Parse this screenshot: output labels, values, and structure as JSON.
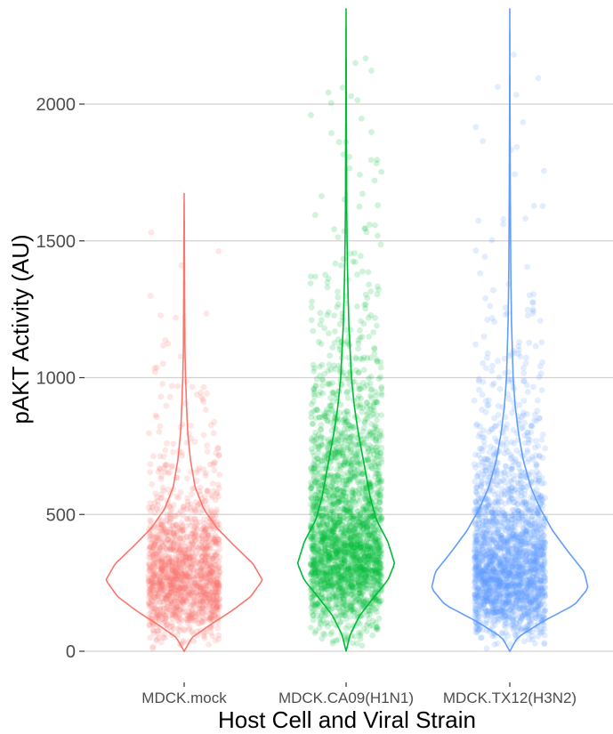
{
  "chart_data": {
    "type": "violin",
    "xlabel": "Host Cell and Viral Strain",
    "ylabel": "pAKT Activity (AU)",
    "ylim": [
      0,
      2350
    ],
    "yticks": [
      0,
      500,
      1000,
      1500,
      2000
    ],
    "grid": "horizontal",
    "legend": "none",
    "categories": [
      "MDCK.mock",
      "MDCK.CA09(H1N1)",
      "MDCK.TX12(H3N2)"
    ],
    "series": [
      {
        "category": "MDCK.mock",
        "color": "#F8766D",
        "fill": "#ffffff",
        "min": 0,
        "max": 1675,
        "mode": 260,
        "points_approx": 1500,
        "density_profile": [
          [
            0,
            0.0
          ],
          [
            50,
            0.1
          ],
          [
            100,
            0.35
          ],
          [
            150,
            0.62
          ],
          [
            200,
            0.85
          ],
          [
            260,
            1.0
          ],
          [
            320,
            0.88
          ],
          [
            380,
            0.66
          ],
          [
            450,
            0.42
          ],
          [
            520,
            0.25
          ],
          [
            600,
            0.14
          ],
          [
            700,
            0.08
          ],
          [
            800,
            0.045
          ],
          [
            900,
            0.03
          ],
          [
            1000,
            0.018
          ],
          [
            1100,
            0.01
          ],
          [
            1300,
            0.006
          ],
          [
            1500,
            0.003
          ],
          [
            1675,
            0.0
          ]
        ]
      },
      {
        "category": "MDCK.CA09(H1N1)",
        "color": "#00BA38",
        "fill": "#ffffff",
        "min": 0,
        "max": 2350,
        "mode": 310,
        "points_approx": 2500,
        "density_profile": [
          [
            0,
            0.0
          ],
          [
            60,
            0.06
          ],
          [
            130,
            0.2
          ],
          [
            200,
            0.42
          ],
          [
            260,
            0.62
          ],
          [
            320,
            0.72
          ],
          [
            400,
            0.62
          ],
          [
            480,
            0.45
          ],
          [
            560,
            0.36
          ],
          [
            640,
            0.3
          ],
          [
            720,
            0.24
          ],
          [
            800,
            0.18
          ],
          [
            900,
            0.12
          ],
          [
            1000,
            0.08
          ],
          [
            1200,
            0.04
          ],
          [
            1400,
            0.02
          ],
          [
            1600,
            0.01
          ],
          [
            1900,
            0.005
          ],
          [
            2350,
            0.0
          ]
        ]
      },
      {
        "category": "MDCK.TX12(H3N2)",
        "color": "#619CFF",
        "fill": "#ffffff",
        "min": 0,
        "max": 2350,
        "mode": 250,
        "points_approx": 2200,
        "density_profile": [
          [
            0,
            0.0
          ],
          [
            50,
            0.08
          ],
          [
            110,
            0.35
          ],
          [
            170,
            0.68
          ],
          [
            230,
            0.82
          ],
          [
            290,
            0.78
          ],
          [
            360,
            0.62
          ],
          [
            440,
            0.45
          ],
          [
            520,
            0.32
          ],
          [
            600,
            0.22
          ],
          [
            700,
            0.14
          ],
          [
            800,
            0.09
          ],
          [
            900,
            0.055
          ],
          [
            1000,
            0.035
          ],
          [
            1200,
            0.018
          ],
          [
            1400,
            0.01
          ],
          [
            1700,
            0.005
          ],
          [
            2000,
            0.002
          ],
          [
            2350,
            0.0
          ]
        ]
      }
    ]
  }
}
